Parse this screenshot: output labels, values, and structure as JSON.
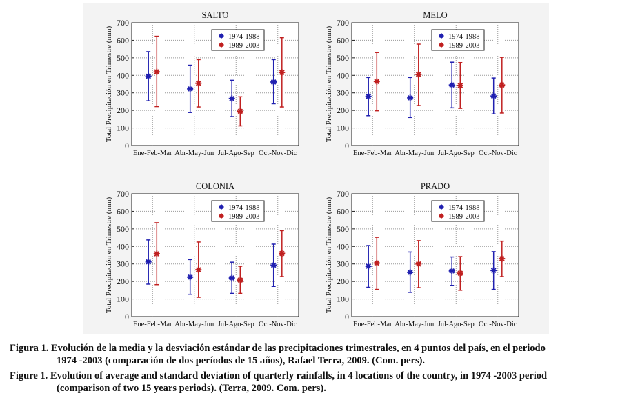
{
  "chart_data": [
    {
      "type": "errorbar",
      "title": "SALTO",
      "ylabel": "Total Precipitación en Trimestre (mm)",
      "ylim": [
        0,
        700
      ],
      "yticks": [
        0,
        100,
        200,
        300,
        400,
        500,
        600,
        700
      ],
      "grid": true,
      "legend_position": "top-right",
      "categories": [
        "Ene-Feb-Mar",
        "Abr-May-Jun",
        "Jul-Ago-Sep",
        "Oct-Nov-Dic"
      ],
      "series": [
        {
          "name": "1974-1988",
          "color": "#2020b0",
          "mean": [
            395,
            323,
            268,
            362
          ],
          "low": [
            255,
            188,
            165,
            238
          ],
          "high": [
            535,
            458,
            372,
            490
          ]
        },
        {
          "name": "1989-2003",
          "color": "#c02020",
          "mean": [
            420,
            355,
            195,
            417
          ],
          "low": [
            222,
            220,
            112,
            220
          ],
          "high": [
            623,
            490,
            278,
            615
          ]
        }
      ]
    },
    {
      "type": "errorbar",
      "title": "MELO",
      "ylabel": "Total Precipitación en Trimestre (mm)",
      "ylim": [
        0,
        700
      ],
      "yticks": [
        0,
        100,
        200,
        300,
        400,
        500,
        600,
        700
      ],
      "grid": true,
      "legend_position": "top-right",
      "categories": [
        "Ene-Feb-Mar",
        "Abr-May-Jun",
        "Jul-Ago-Sep",
        "Oct-Nov-Dic"
      ],
      "series": [
        {
          "name": "1974-1988",
          "color": "#2020b0",
          "mean": [
            280,
            272,
            345,
            282
          ],
          "low": [
            170,
            160,
            215,
            180
          ],
          "high": [
            388,
            388,
            475,
            385
          ]
        },
        {
          "name": "1989-2003",
          "color": "#c02020",
          "mean": [
            365,
            405,
            342,
            345
          ],
          "low": [
            198,
            228,
            212,
            185
          ],
          "high": [
            530,
            578,
            473,
            503
          ]
        }
      ]
    },
    {
      "type": "errorbar",
      "title": "COLONIA",
      "ylabel": "Total Precipitación en Trimestre (mm)",
      "ylim": [
        0,
        700
      ],
      "yticks": [
        0,
        100,
        200,
        300,
        400,
        500,
        600,
        700
      ],
      "grid": true,
      "legend_position": "top-right",
      "categories": [
        "Ene-Feb-Mar",
        "Abr-May-Jun",
        "Jul-Ago-Sep",
        "Oct-Nov-Dic"
      ],
      "series": [
        {
          "name": "1974-1988",
          "color": "#2020b0",
          "mean": [
            312,
            225,
            220,
            293
          ],
          "low": [
            185,
            127,
            132,
            172
          ],
          "high": [
            437,
            325,
            310,
            413
          ]
        },
        {
          "name": "1989-2003",
          "color": "#c02020",
          "mean": [
            358,
            267,
            208,
            360
          ],
          "low": [
            182,
            110,
            132,
            228
          ],
          "high": [
            535,
            425,
            287,
            490
          ]
        }
      ]
    },
    {
      "type": "errorbar",
      "title": "PRADO",
      "ylabel": "Total Precipitación en Trimestre (mm)",
      "ylim": [
        0,
        700
      ],
      "yticks": [
        0,
        100,
        200,
        300,
        400,
        500,
        600,
        700
      ],
      "grid": true,
      "legend_position": "top-right",
      "categories": [
        "Ene-Feb-Mar",
        "Abr-May-Jun",
        "Jul-Ago-Sep",
        "Oct-Nov-Dic"
      ],
      "series": [
        {
          "name": "1974-1988",
          "color": "#2020b0",
          "mean": [
            287,
            252,
            260,
            263
          ],
          "low": [
            167,
            138,
            178,
            155
          ],
          "high": [
            405,
            368,
            340,
            370
          ]
        },
        {
          "name": "1989-2003",
          "color": "#c02020",
          "mean": [
            305,
            300,
            247,
            330
          ],
          "low": [
            155,
            165,
            150,
            228
          ],
          "high": [
            452,
            433,
            342,
            430
          ]
        }
      ]
    }
  ],
  "caption": {
    "es_line1": "Figura 1. Evolución de la media y la desviación estándar de las precipitaciones trimestrales, en 4 puntos del país, en el periodo",
    "es_line2": "1974 -2003 (comparación de dos períodos de 15 años), Rafael Terra, 2009. (Com. pers).",
    "en_line1": "Figure 1. Evolution of average and standard deviation of quarterly rainfalls, in 4 locations of the country, in 1974 -2003 period",
    "en_line2": "(comparison of two 15 years periods). (Terra, 2009. Com. pers)."
  }
}
